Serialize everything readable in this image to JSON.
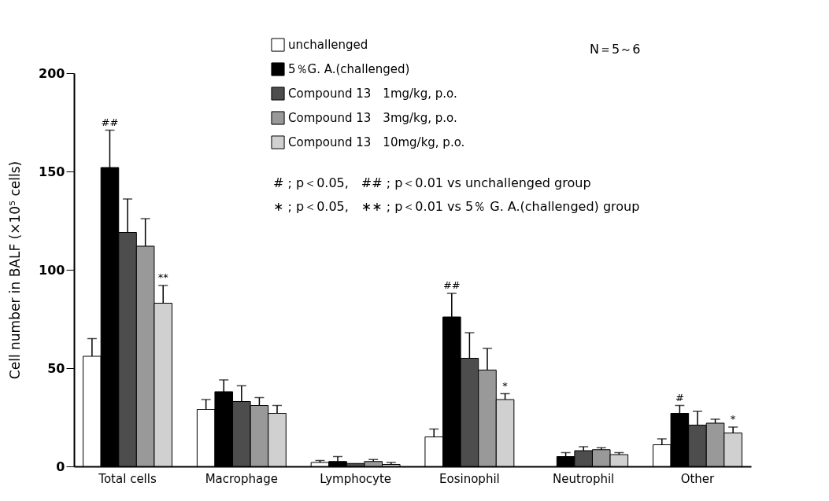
{
  "chart_data": {
    "type": "bar",
    "ylabel": "Cell number in BALF (×10⁵ cells)",
    "categories": [
      "Total cells",
      "Macrophage",
      "Lymphocyte",
      "Eosinophil",
      "Neutrophil",
      "Other"
    ],
    "series": [
      {
        "name": "unchallenged",
        "color": "#ffffff",
        "values": [
          56,
          29,
          2,
          15,
          null,
          11
        ],
        "errors": [
          [
            56,
            65
          ],
          [
            29,
            34
          ],
          [
            2,
            3
          ],
          [
            15,
            19
          ],
          null,
          [
            11,
            14
          ]
        ]
      },
      {
        "name": "5％G. A.(challenged)",
        "color": "#000000",
        "values": [
          152,
          38,
          2.5,
          76,
          5,
          27
        ],
        "errors": [
          [
            152,
            171
          ],
          [
            38,
            44
          ],
          [
            2.5,
            5
          ],
          [
            76,
            88
          ],
          [
            5,
            7
          ],
          [
            27,
            31
          ]
        ]
      },
      {
        "name": "Compound 13　1mg/kg, p.o.",
        "color": "#4d4d4d",
        "values": [
          119,
          33,
          1.5,
          55,
          8,
          21
        ],
        "errors": [
          [
            119,
            136
          ],
          [
            33,
            41
          ],
          null,
          [
            55,
            68
          ],
          [
            8,
            10
          ],
          [
            21,
            28
          ]
        ]
      },
      {
        "name": "Compound 13　3mg/kg, p.o.",
        "color": "#999999",
        "values": [
          112,
          31,
          2.5,
          49,
          8.5,
          22
        ],
        "errors": [
          [
            112,
            126
          ],
          [
            31,
            35
          ],
          [
            2.5,
            3.5
          ],
          [
            49,
            60
          ],
          [
            8.5,
            9.5
          ],
          [
            22,
            24
          ]
        ]
      },
      {
        "name": "Compound 13　10mg/kg, p.o.",
        "color": "#d0d0d0",
        "values": [
          83,
          27,
          1,
          34,
          6,
          17
        ],
        "errors": [
          [
            83,
            92
          ],
          [
            27,
            31
          ],
          [
            1,
            2
          ],
          [
            34,
            37
          ],
          [
            6,
            7
          ],
          [
            17,
            20
          ]
        ]
      }
    ],
    "ylim": [
      0,
      200
    ],
    "yticks": [
      0,
      50,
      100,
      150,
      200
    ],
    "grid": false,
    "legend": "top",
    "annotations": [
      "##",
      "**",
      "##",
      "*",
      "#",
      "*",
      "N＝5～6",
      "# ; p＜0.05,　## ; p＜0.01 vs unchallenged group",
      "∗ ; p＜0.05,　∗∗ ; p＜0.01 vs 5％ G. A.(challenged) group"
    ]
  }
}
